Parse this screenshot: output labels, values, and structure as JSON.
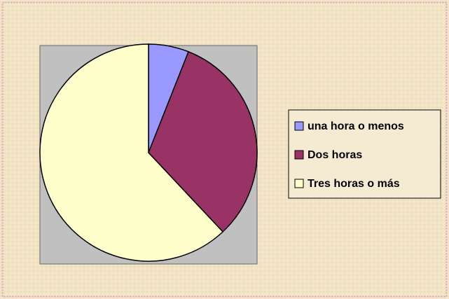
{
  "chart_data": {
    "type": "pie",
    "categories": [
      "una hora o menos",
      "Dos horas",
      "Tres horas o más"
    ],
    "values": [
      6,
      32,
      62
    ],
    "colors": [
      "#9999ff",
      "#993366",
      "#ffffcc"
    ],
    "legend": "right"
  }
}
